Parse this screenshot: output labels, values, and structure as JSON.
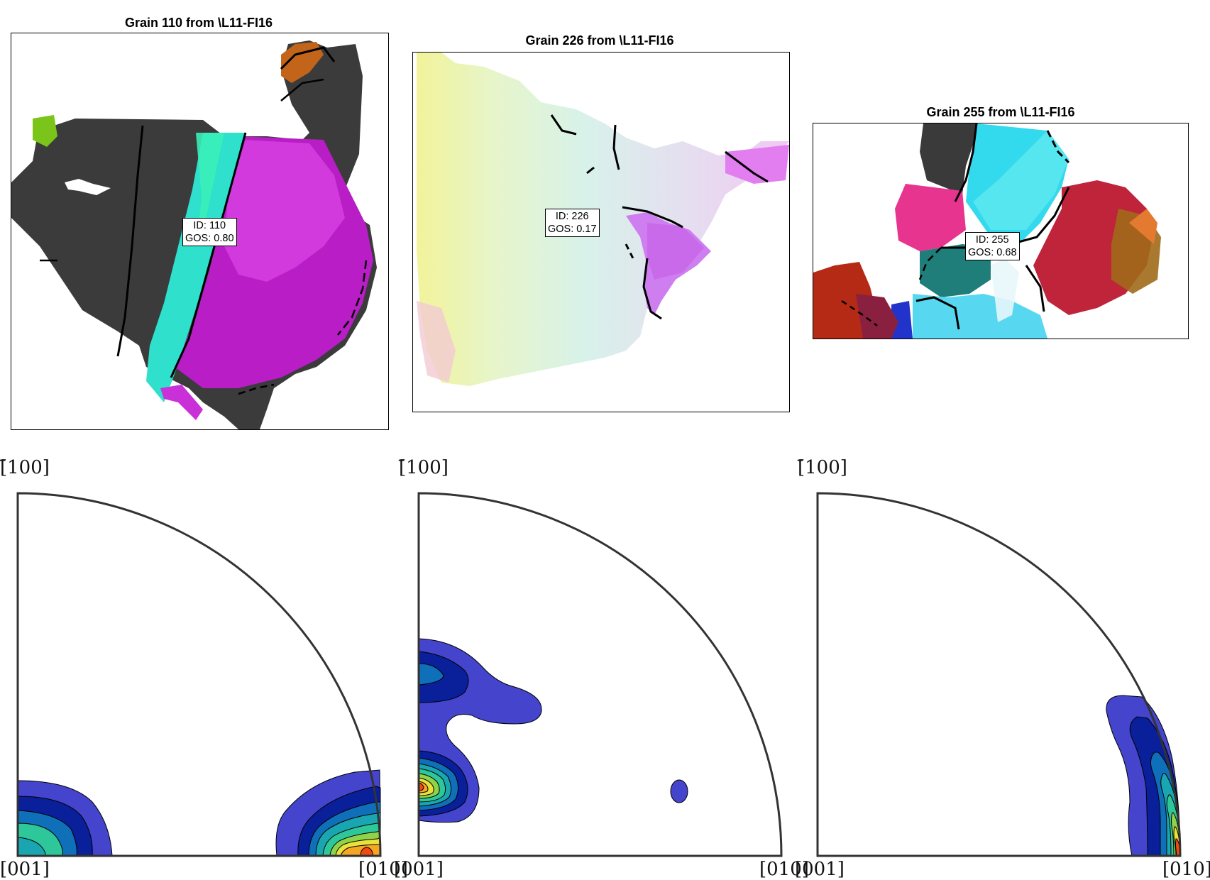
{
  "grains": [
    {
      "title": "Grain 110 from \\L11-FI16",
      "id_label": "ID: 110",
      "gos_label": "GOS: 0.80"
    },
    {
      "title": "Grain 226 from \\L11-FI16",
      "id_label": "ID: 226",
      "gos_label": "GOS: 0.17"
    },
    {
      "title": "Grain 255 from \\L11-FI16",
      "id_label": "ID: 255",
      "gos_label": "GOS: 0.68"
    }
  ],
  "pole_figures": [
    {
      "top_label": "[̄100]",
      "left_label": "[001]",
      "right_label": "[010]"
    },
    {
      "top_label": "[̄100]",
      "left_label": "[001]",
      "right_label": "[010]"
    },
    {
      "top_label": "[̄100]",
      "left_label": "[001]",
      "right_label": "[010]"
    }
  ],
  "colors": {
    "contour_levels": [
      "#4444cc",
      "#1a2fb8",
      "#0a1f9a",
      "#0f6fb8",
      "#1aa6b0",
      "#2ec79a",
      "#8fd34a",
      "#e8e23a",
      "#f5a623",
      "#f04a10"
    ],
    "dark_matrix": "#3a3a3a",
    "magenta": "#b21fc4",
    "cyan": "#2fe0d2"
  }
}
